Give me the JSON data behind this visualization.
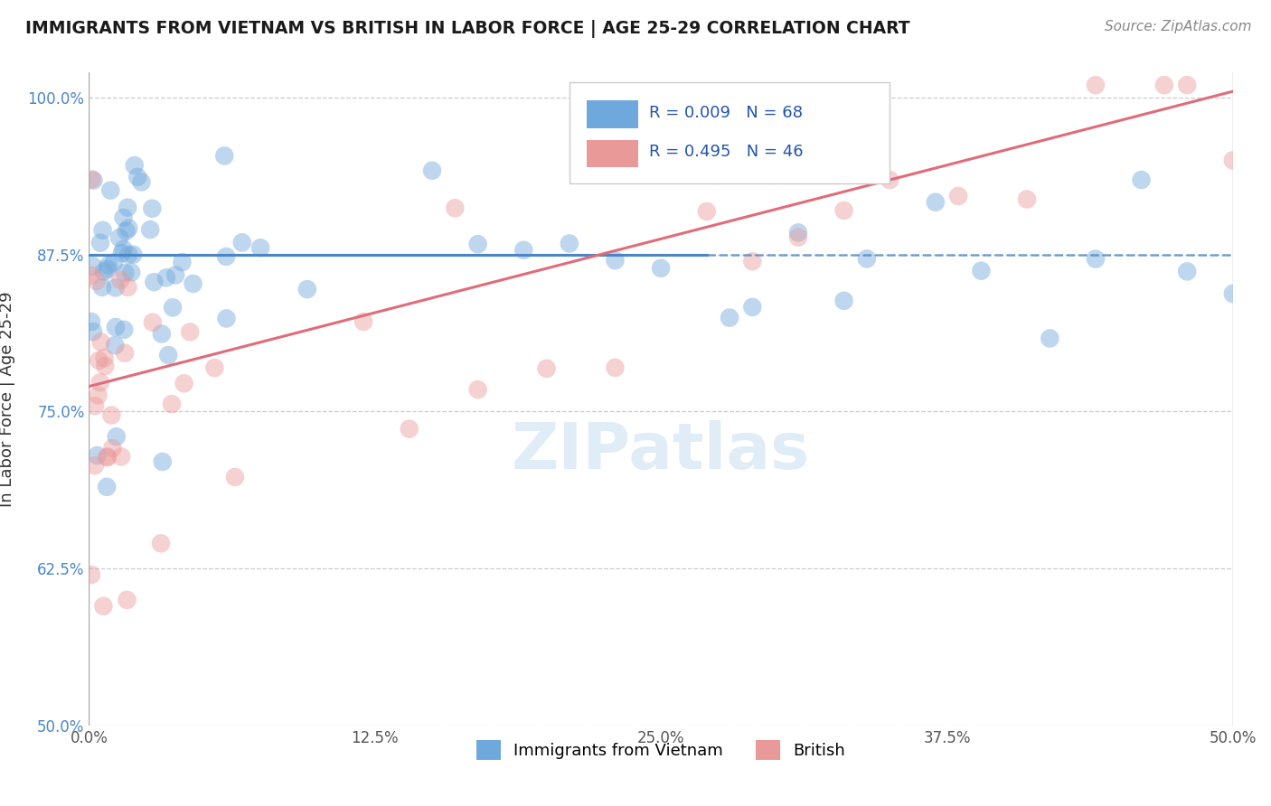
{
  "title": "IMMIGRANTS FROM VIETNAM VS BRITISH IN LABOR FORCE | AGE 25-29 CORRELATION CHART",
  "source": "Source: ZipAtlas.com",
  "ylabel": "In Labor Force | Age 25-29",
  "xlim": [
    0.0,
    0.5
  ],
  "ylim": [
    0.5,
    1.02
  ],
  "xtick_labels": [
    "0.0%",
    "12.5%",
    "25.0%",
    "37.5%",
    "50.0%"
  ],
  "xtick_vals": [
    0.0,
    0.125,
    0.25,
    0.375,
    0.5
  ],
  "ytick_labels": [
    "50.0%",
    "62.5%",
    "75.0%",
    "87.5%",
    "100.0%"
  ],
  "ytick_vals": [
    0.5,
    0.625,
    0.75,
    0.875,
    1.0
  ],
  "blue_color": "#6fa8dc",
  "pink_color": "#ea9999",
  "blue_line_color": "#4a86c8",
  "pink_line_color": "#e06c7a",
  "legend_label_blue": "Immigrants from Vietnam",
  "legend_label_pink": "British",
  "R_blue": 0.009,
  "N_blue": 68,
  "R_pink": 0.495,
  "N_pink": 46,
  "blue_line_x": [
    0.0,
    0.5
  ],
  "blue_line_y": [
    0.875,
    0.875
  ],
  "blue_line_solid_end": 0.27,
  "pink_line_x": [
    0.0,
    0.5
  ],
  "pink_line_y": [
    0.77,
    1.005
  ],
  "grid_color": "#cccccc",
  "dot_size": 220,
  "dot_alpha": 0.45
}
